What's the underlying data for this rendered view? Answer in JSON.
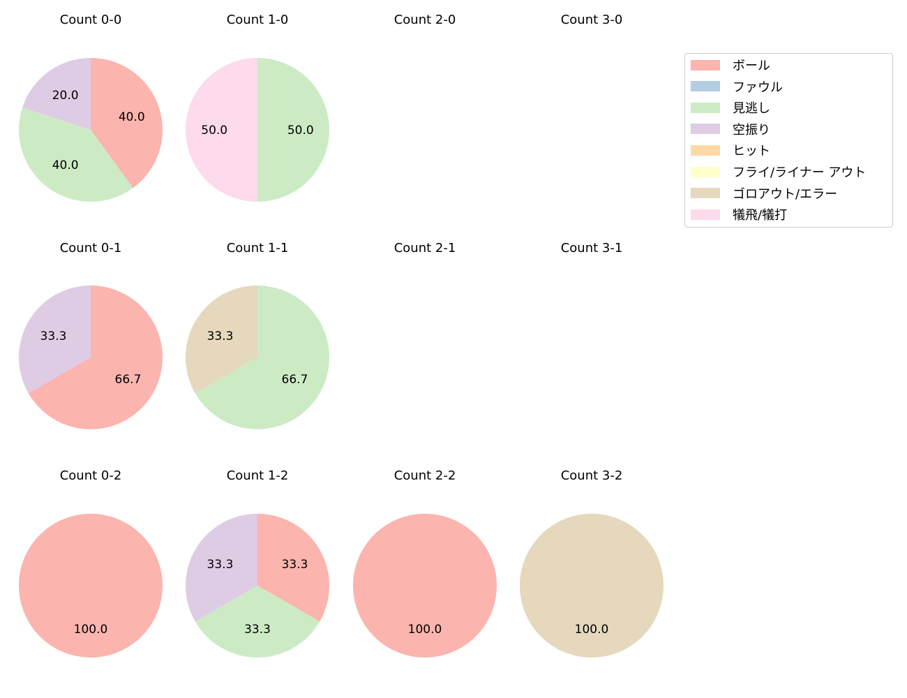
{
  "chart_data": {
    "type": "pie",
    "categories": [
      "ボール",
      "ファウル",
      "見逃し",
      "空振り",
      "ヒット",
      "フライ/ライナー アウト",
      "ゴロアウト/エラー",
      "犠飛/犠打"
    ],
    "colors": [
      "#fbb4ae",
      "#b3cde3",
      "#ccebc5",
      "#decbe4",
      "#fed9a6",
      "#ffffcc",
      "#e5d8bd",
      "#fddaec"
    ],
    "legend_position": "upper right",
    "subplots": [
      {
        "title": "Count 0-0",
        "row": 0,
        "col": 0,
        "slices": [
          {
            "category": "ボール",
            "value": 40.0
          },
          {
            "category": "見逃し",
            "value": 40.0
          },
          {
            "category": "空振り",
            "value": 20.0
          }
        ]
      },
      {
        "title": "Count 1-0",
        "row": 0,
        "col": 1,
        "slices": [
          {
            "category": "見逃し",
            "value": 50.0
          },
          {
            "category": "犠飛/犠打",
            "value": 50.0
          }
        ]
      },
      {
        "title": "Count 2-0",
        "row": 0,
        "col": 2,
        "slices": []
      },
      {
        "title": "Count 3-0",
        "row": 0,
        "col": 3,
        "slices": []
      },
      {
        "title": "Count 0-1",
        "row": 1,
        "col": 0,
        "slices": [
          {
            "category": "ボール",
            "value": 66.7
          },
          {
            "category": "空振り",
            "value": 33.3
          }
        ]
      },
      {
        "title": "Count 1-1",
        "row": 1,
        "col": 1,
        "slices": [
          {
            "category": "見逃し",
            "value": 66.7
          },
          {
            "category": "ゴロアウト/エラー",
            "value": 33.3
          }
        ]
      },
      {
        "title": "Count 2-1",
        "row": 1,
        "col": 2,
        "slices": []
      },
      {
        "title": "Count 3-1",
        "row": 1,
        "col": 3,
        "slices": []
      },
      {
        "title": "Count 0-2",
        "row": 2,
        "col": 0,
        "slices": [
          {
            "category": "ボール",
            "value": 100.0
          }
        ]
      },
      {
        "title": "Count 1-2",
        "row": 2,
        "col": 1,
        "slices": [
          {
            "category": "ボール",
            "value": 33.3
          },
          {
            "category": "見逃し",
            "value": 33.3
          },
          {
            "category": "空振り",
            "value": 33.3
          }
        ]
      },
      {
        "title": "Count 2-2",
        "row": 2,
        "col": 2,
        "slices": [
          {
            "category": "ボール",
            "value": 100.0
          }
        ]
      },
      {
        "title": "Count 3-2",
        "row": 2,
        "col": 3,
        "slices": [
          {
            "category": "ゴロアウト/エラー",
            "value": 100.0
          }
        ]
      }
    ]
  }
}
